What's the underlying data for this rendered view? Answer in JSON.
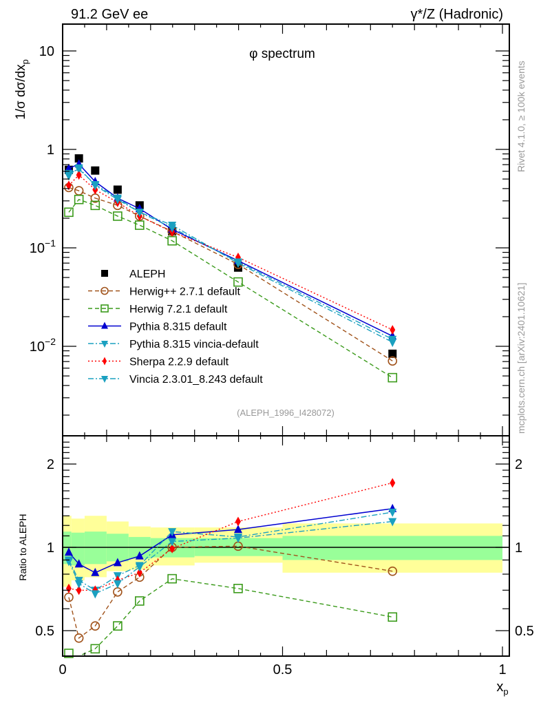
{
  "header": {
    "left_label": "91.2 GeV ee",
    "right_label": "γ*/Z (Hadronic)",
    "side_label_top": "Rivet 4.1.0, ≥ 100k events",
    "side_label_bottom": "mcplots.cern.ch [arXiv:2401.10621]"
  },
  "colors": {
    "ALEPH": "#000000",
    "Herwig++": "#a0521a",
    "Herwig7": "#3a9a1a",
    "Pythia": "#0000d0",
    "PythiaVincia": "#1aa0c0",
    "Sherpa": "#ff0000",
    "Vincia": "#1aa0c0",
    "band_inner": "#99ff99",
    "band_outer": "#ffff99"
  },
  "chart_data": [
    {
      "type": "line",
      "panel": "main",
      "title": "φ spectrum",
      "analysis_tag": "(ALEPH_1996_I428072)",
      "xlabel": "",
      "ylabel": "1/σ  dσ/dx_p",
      "yscale": "log",
      "xlim": [
        0,
        1
      ],
      "ylim": [
        0.0009,
        18
      ],
      "yticks": [
        {
          "value": 10,
          "label": "10"
        },
        {
          "value": 1,
          "label": "1"
        },
        {
          "value": 0.1,
          "label": "10^-1"
        },
        {
          "value": 0.01,
          "label": "10^-2"
        }
      ],
      "legend_position": "middle-left",
      "x": [
        0.014,
        0.037,
        0.074,
        0.125,
        0.175,
        0.249,
        0.399,
        0.75
      ],
      "series": [
        {
          "name": "ALEPH",
          "key": "ALEPH",
          "marker": "square-filled",
          "line": "none",
          "values": [
            0.62,
            0.81,
            0.61,
            0.39,
            0.27,
            0.147,
            0.063,
            0.0084
          ]
        },
        {
          "name": "Herwig++ 2.7.1 default",
          "key": "Herwig++",
          "marker": "circle-open",
          "line": "dashed",
          "values": [
            0.41,
            0.38,
            0.32,
            0.27,
            0.21,
            0.147,
            0.068,
            0.0071
          ]
        },
        {
          "name": "Herwig 7.2.1 default",
          "key": "Herwig7",
          "marker": "square-open",
          "line": "dashed",
          "values": [
            0.23,
            0.31,
            0.27,
            0.21,
            0.17,
            0.118,
            0.045,
            0.0048
          ]
        },
        {
          "name": "Pythia 8.315 default",
          "key": "Pythia",
          "marker": "triangle-up",
          "line": "solid",
          "values": [
            0.64,
            0.71,
            0.47,
            0.32,
            0.25,
            0.154,
            0.074,
            0.0127
          ]
        },
        {
          "name": "Pythia 8.315 vincia-default",
          "key": "PythiaVincia",
          "marker": "triangle-down",
          "line": "dashdot",
          "values": [
            0.57,
            0.63,
            0.44,
            0.32,
            0.23,
            0.17,
            0.07,
            0.011
          ]
        },
        {
          "name": "Sherpa 2.2.9 default",
          "key": "Sherpa",
          "marker": "diamond",
          "line": "dotted",
          "values": [
            0.43,
            0.55,
            0.39,
            0.29,
            0.21,
            0.145,
            0.08,
            0.0147
          ]
        },
        {
          "name": "Vincia 2.3.01_8.243 default",
          "key": "Vincia",
          "marker": "triangle-down",
          "line": "dashdot",
          "values": [
            0.54,
            0.65,
            0.43,
            0.31,
            0.23,
            0.16,
            0.072,
            0.0118
          ]
        }
      ]
    },
    {
      "type": "line",
      "panel": "ratio",
      "ylabel": "Ratio to ALEPH",
      "xlabel": "x_p",
      "yscale": "log",
      "xlim": [
        0,
        1
      ],
      "ylim": [
        0.4,
        2.5
      ],
      "yticks": [
        {
          "value": 2,
          "label": "2"
        },
        {
          "value": 1,
          "label": "1"
        },
        {
          "value": 0.5,
          "label": "0.5"
        }
      ],
      "xticks": [
        {
          "value": 0,
          "label": "0"
        },
        {
          "value": 0.5,
          "label": "0.5"
        },
        {
          "value": 1,
          "label": "1"
        }
      ],
      "x": [
        0.014,
        0.037,
        0.074,
        0.125,
        0.175,
        0.249,
        0.399,
        0.75
      ],
      "bands": {
        "edges": [
          0.0,
          0.02,
          0.05,
          0.1,
          0.15,
          0.2,
          0.3,
          0.5,
          1.0
        ],
        "inner_lo": [
          0.87,
          0.86,
          0.87,
          0.89,
          0.91,
          0.92,
          0.93,
          0.9
        ],
        "inner_hi": [
          1.14,
          1.13,
          1.14,
          1.12,
          1.09,
          1.08,
          1.08,
          1.1
        ],
        "outer_lo": [
          0.72,
          0.76,
          0.78,
          0.82,
          0.83,
          0.86,
          0.88,
          0.81
        ],
        "outer_hi": [
          1.3,
          1.27,
          1.3,
          1.24,
          1.19,
          1.18,
          1.18,
          1.22
        ]
      },
      "series": [
        {
          "name": "Herwig++ 2.7.1 default",
          "key": "Herwig++",
          "marker": "circle-open",
          "line": "dashed",
          "values": [
            0.66,
            0.47,
            0.52,
            0.69,
            0.78,
            1.0,
            1.01,
            0.82
          ]
        },
        {
          "name": "Herwig 7.2.1 default",
          "key": "Herwig7",
          "marker": "square-open",
          "line": "dashed",
          "values": [
            0.4,
            0.37,
            0.43,
            0.52,
            0.64,
            0.77,
            0.71,
            0.56
          ]
        },
        {
          "name": "Pythia 8.315 default",
          "key": "Pythia",
          "marker": "triangle-up",
          "line": "solid",
          "values": [
            0.96,
            0.87,
            0.81,
            0.88,
            0.93,
            1.11,
            1.16,
            1.38
          ]
        },
        {
          "name": "Pythia 8.315 vincia-default",
          "key": "PythiaVincia",
          "marker": "triangle-down",
          "line": "dashdot",
          "values": [
            0.9,
            0.76,
            0.7,
            0.79,
            0.86,
            1.14,
            1.09,
            1.34
          ]
        },
        {
          "name": "Sherpa 2.2.9 default",
          "key": "Sherpa",
          "marker": "diamond",
          "line": "dotted",
          "values": [
            0.71,
            0.7,
            0.7,
            0.76,
            0.81,
            0.99,
            1.24,
            1.71
          ]
        },
        {
          "name": "Vincia 2.3.01_8.243 default",
          "key": "Vincia",
          "marker": "triangle-down",
          "line": "dashdot",
          "values": [
            0.89,
            0.74,
            0.68,
            0.74,
            0.85,
            1.05,
            1.08,
            1.24
          ]
        }
      ]
    }
  ]
}
